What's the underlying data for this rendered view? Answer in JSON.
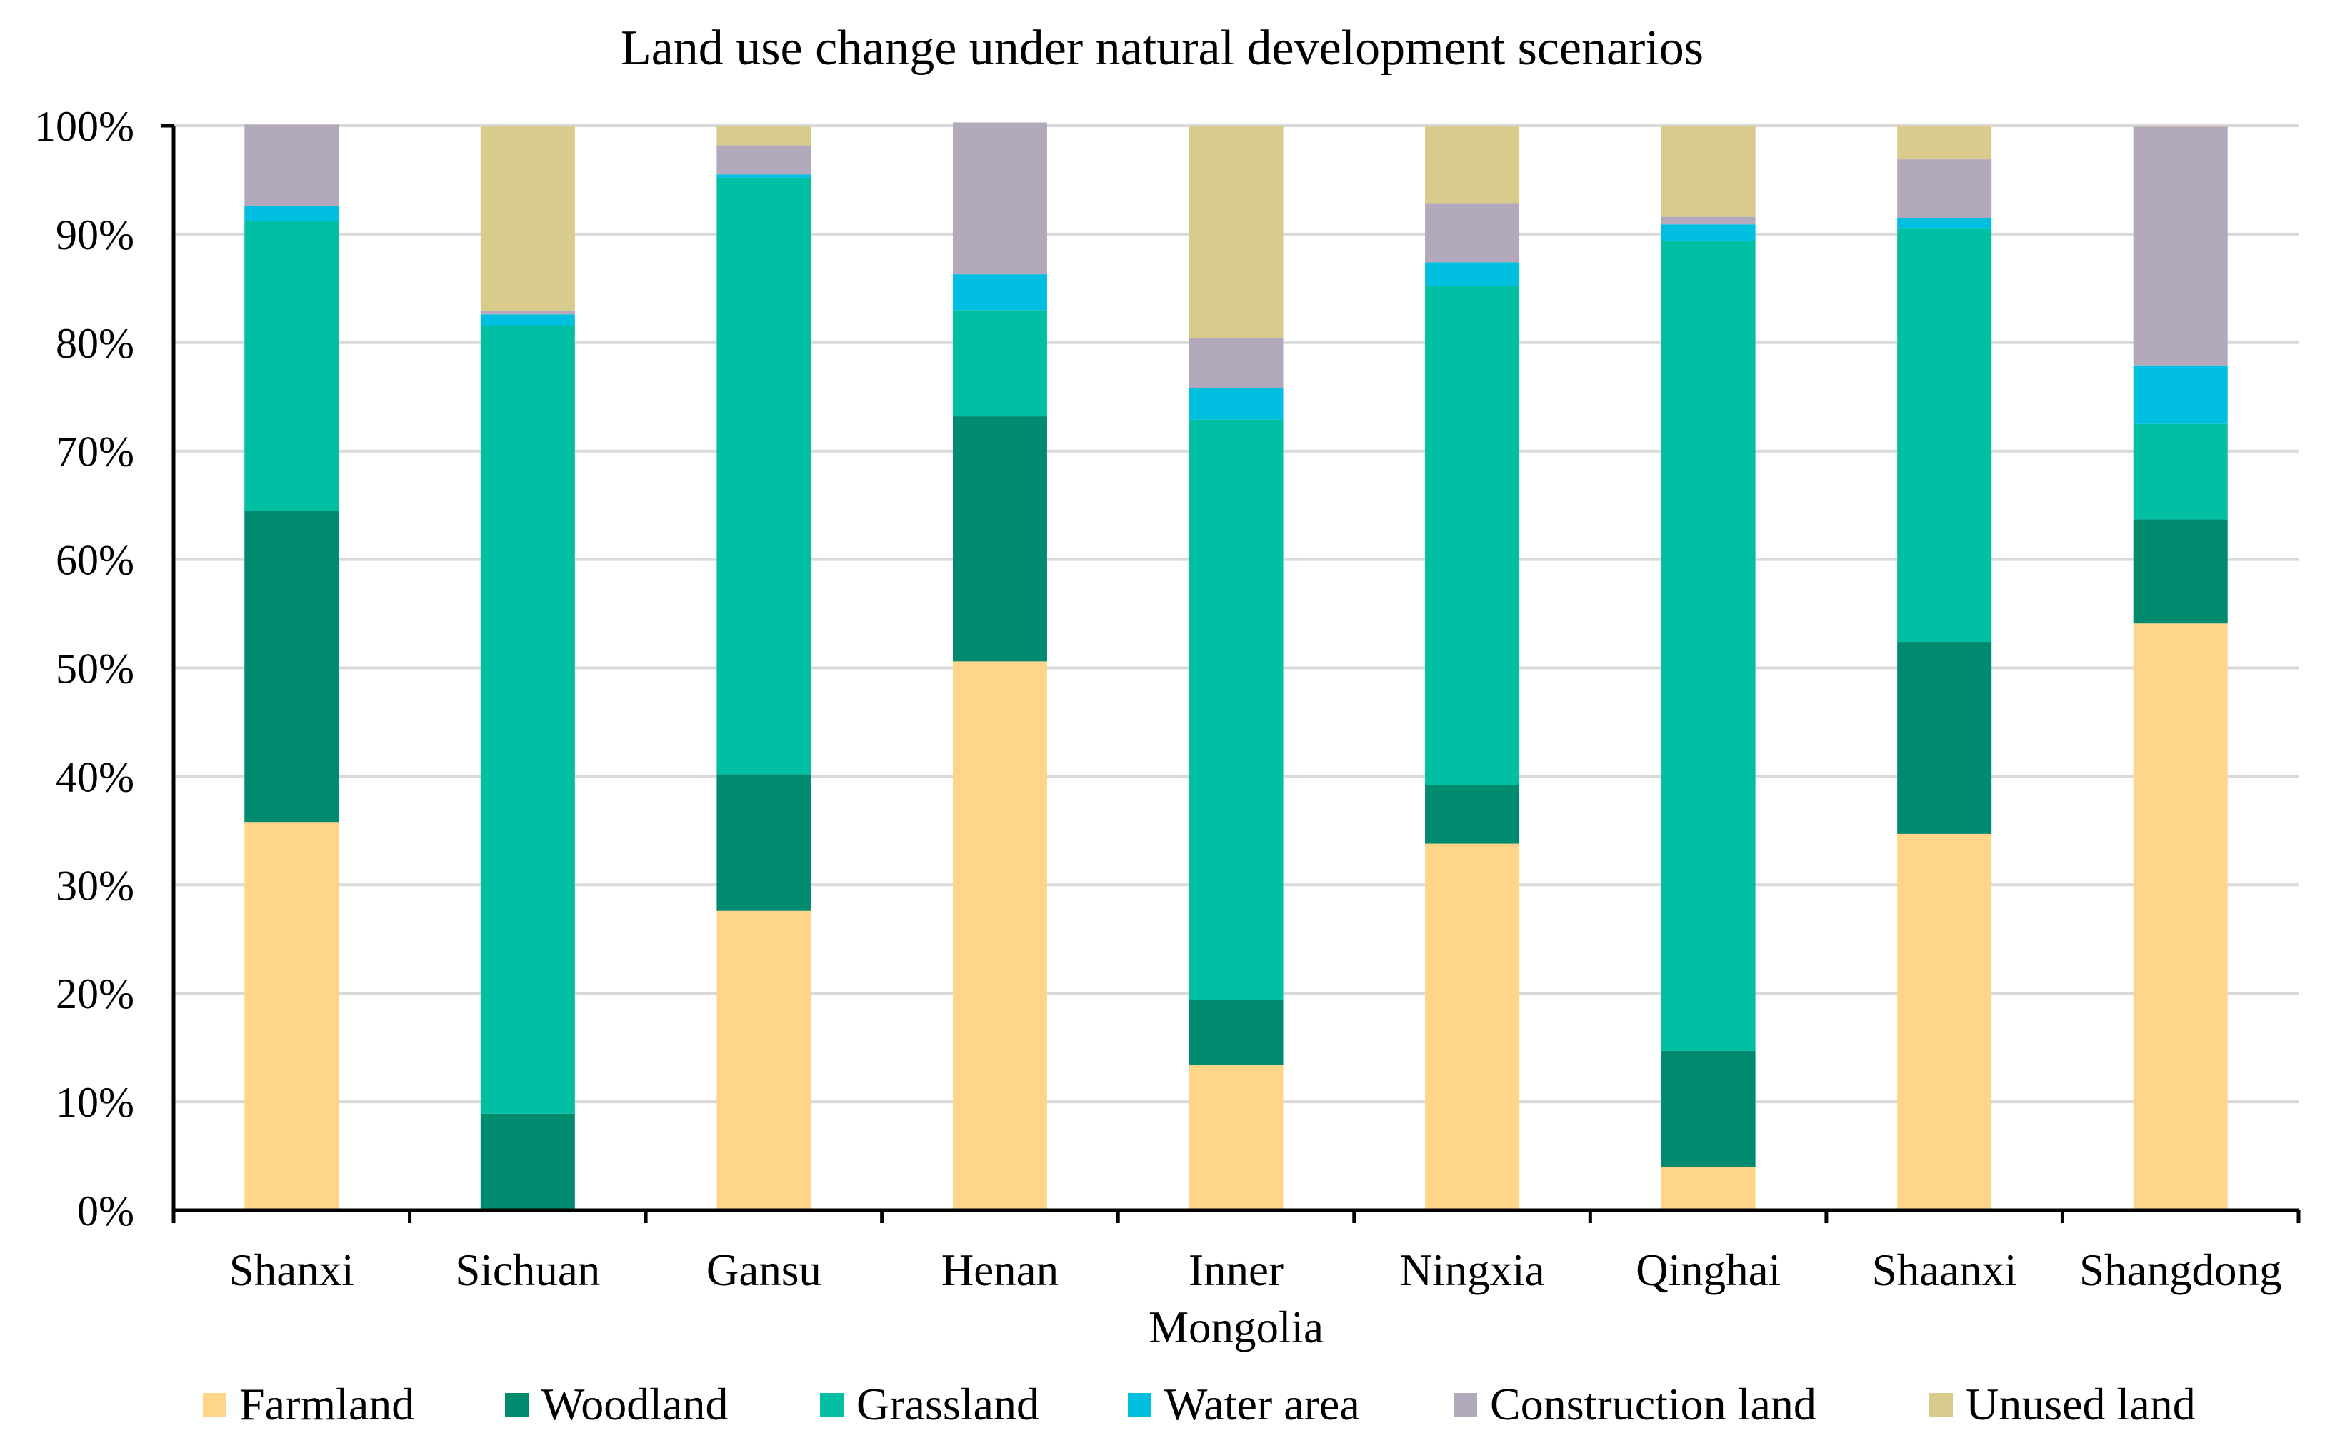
{
  "chart_data": {
    "type": "bar",
    "stacked": true,
    "title": "Land use change under natural development scenarios",
    "xlabel": "",
    "ylabel": "",
    "ylim": [
      0,
      100
    ],
    "y_ticks": [
      "0%",
      "10%",
      "20%",
      "30%",
      "40%",
      "50%",
      "60%",
      "70%",
      "80%",
      "90%",
      "100%"
    ],
    "grid": true,
    "legend_position": "bottom",
    "categories": [
      "Shanxi",
      "Sichuan",
      "Gansu",
      "Henan",
      "Inner Mongolia",
      "Ningxia",
      "Qinghai",
      "Shaanxi",
      "Shangdong"
    ],
    "category_lines": [
      [
        "Shanxi"
      ],
      [
        "Sichuan"
      ],
      [
        "Gansu"
      ],
      [
        "Henan"
      ],
      [
        "Inner",
        "Mongolia"
      ],
      [
        "Ningxia"
      ],
      [
        "Qinghai"
      ],
      [
        "Shaanxi"
      ],
      [
        "Shangdong"
      ]
    ],
    "series": [
      {
        "name": "Farmland",
        "color": "#FFD58A",
        "values": [
          35.8,
          0.0,
          27.6,
          50.6,
          13.4,
          33.8,
          4.0,
          34.7,
          54.1
        ]
      },
      {
        "name": "Woodland",
        "color": "#008A6E",
        "values": [
          28.7,
          8.9,
          12.6,
          22.6,
          6.0,
          5.4,
          10.7,
          17.7,
          9.6
        ]
      },
      {
        "name": "Grassland",
        "color": "#00BFA3",
        "values": [
          26.7,
          72.7,
          55.0,
          9.8,
          53.5,
          46.0,
          74.7,
          38.1,
          8.8
        ]
      },
      {
        "name": "Water area",
        "color": "#00BFE0",
        "values": [
          1.4,
          1.0,
          0.3,
          3.3,
          2.9,
          2.2,
          1.5,
          1.0,
          5.4
        ]
      },
      {
        "name": "Construction land",
        "color": "#B2A9BD",
        "values": [
          7.5,
          0.3,
          2.7,
          14.0,
          4.6,
          5.4,
          0.7,
          5.4,
          22.0
        ]
      },
      {
        "name": "Unused land",
        "color": "#D9CB8C",
        "values": [
          0.0,
          17.1,
          1.8,
          0.0,
          19.6,
          7.2,
          8.4,
          3.1,
          0.1
        ]
      }
    ]
  }
}
